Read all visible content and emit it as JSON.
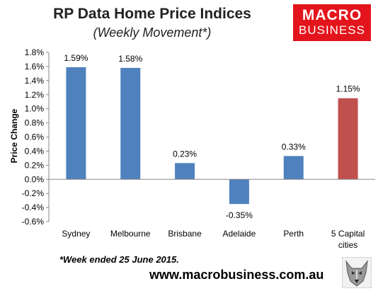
{
  "header": {
    "title": "RP Data Home Price Indices",
    "subtitle": "(Weekly Movement*)"
  },
  "logo": {
    "line1": "MACRO",
    "line2": "BUSINESS",
    "color": "#e3141b"
  },
  "footer": {
    "footnote": "*Week ended 25 June 2015.",
    "website": "www.macrobusiness.com.au",
    "wolf_icon": "wolf-head-icon"
  },
  "chart_data": {
    "type": "bar",
    "title": "RP Data Home Price Indices",
    "subtitle": "(Weekly Movement*)",
    "xlabel": "",
    "ylabel": "Price Change",
    "categories": [
      [
        "Sydney"
      ],
      [
        "Melbourne"
      ],
      [
        "Brisbane"
      ],
      [
        "Adelaide"
      ],
      [
        "Perth"
      ],
      [
        "5 Capital",
        "cities"
      ]
    ],
    "values": [
      1.59,
      1.58,
      0.23,
      -0.35,
      0.33,
      1.15
    ],
    "data_labels": [
      "1.59%",
      "1.58%",
      "0.23%",
      "-0.35%",
      "0.33%",
      "1.15%"
    ],
    "bar_colors": [
      "#4f81bd",
      "#4f81bd",
      "#4f81bd",
      "#4f81bd",
      "#4f81bd",
      "#c0504d"
    ],
    "ylim": [
      -0.6,
      1.8
    ],
    "yticks": [
      1.8,
      1.6,
      1.4,
      1.2,
      1.0,
      0.8,
      0.6,
      0.4,
      0.2,
      0.0,
      -0.2,
      -0.4,
      -0.6
    ],
    "ytick_labels": [
      "1.8%",
      "1.6%",
      "1.4%",
      "1.2%",
      "1.0%",
      "0.8%",
      "0.6%",
      "0.4%",
      "0.2%",
      "0.0%",
      "-0.2%",
      "-0.4%",
      "-0.6%"
    ],
    "grid": false,
    "legend": "none"
  }
}
